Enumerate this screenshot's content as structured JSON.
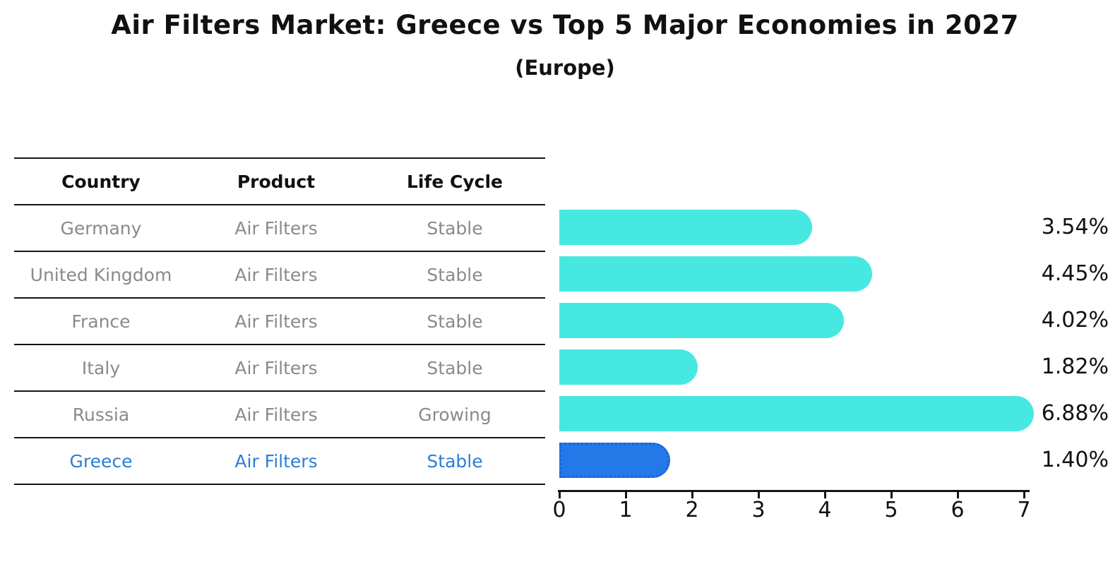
{
  "chart_data": {
    "type": "bar",
    "orientation": "horizontal",
    "title": "Air Filters Market: Greece vs Top 5 Major Economies in 2027",
    "subtitle": "(Europe)",
    "categories": [
      "Germany",
      "United Kingdom",
      "France",
      "Italy",
      "Russia",
      "Greece"
    ],
    "values": [
      3.54,
      4.45,
      4.02,
      1.82,
      6.88,
      1.4
    ],
    "value_labels": [
      "3.54%",
      "4.45%",
      "4.02%",
      "1.82%",
      "6.88%",
      "1.40%"
    ],
    "xlim": [
      0,
      7.1
    ],
    "x_ticks": [
      "0",
      "1",
      "2",
      "3",
      "4",
      "5",
      "6",
      "7"
    ],
    "grid": false,
    "legend": "none",
    "bar_color": "#47E8E2",
    "highlight_color": "#2478E8",
    "highlight_index": 5,
    "xlabel": "",
    "ylabel": ""
  },
  "table": {
    "headers": [
      "Country",
      "Product",
      "Life Cycle"
    ],
    "rows": [
      {
        "country": "Germany",
        "product": "Air Filters",
        "life_cycle": "Stable",
        "value": 3.54,
        "label": "3.54%",
        "highlight": false
      },
      {
        "country": "United Kingdom",
        "product": "Air Filters",
        "life_cycle": "Stable",
        "value": 4.45,
        "label": "4.45%",
        "highlight": false
      },
      {
        "country": "France",
        "product": "Air Filters",
        "life_cycle": "Stable",
        "value": 4.02,
        "label": "4.02%",
        "highlight": false
      },
      {
        "country": "Italy",
        "product": "Air Filters",
        "life_cycle": "Stable",
        "value": 1.82,
        "label": "1.82%",
        "highlight": false
      },
      {
        "country": "Russia",
        "product": "Air Filters",
        "life_cycle": "Growing",
        "value": 6.88,
        "label": "6.88%",
        "highlight": false
      },
      {
        "country": "Greece",
        "product": "Air Filters",
        "life_cycle": "Stable",
        "value": 1.4,
        "label": "1.40%",
        "highlight": true
      }
    ]
  },
  "colors": {
    "bar_cyan": "#47E8E2",
    "bar_blue": "#2478E8",
    "bar_blue_border": "#1b63d8",
    "row_text_gray": "#8a8a8a",
    "highlight_text_blue": "#2b7fd4",
    "text_black": "#111111",
    "line_black": "#141414",
    "background": "#ffffff"
  }
}
